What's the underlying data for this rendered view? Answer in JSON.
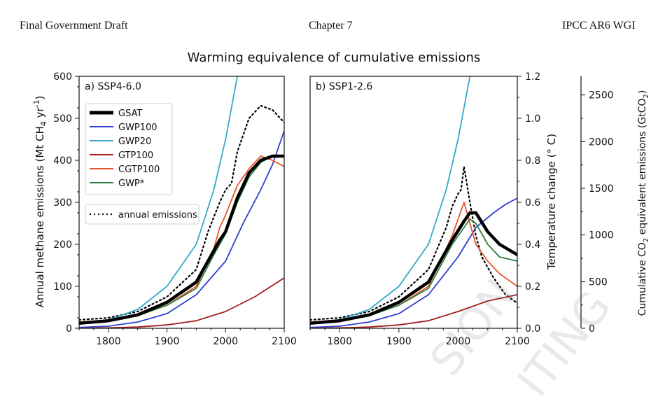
{
  "header": {
    "left": "Final Government Draft",
    "center": "Chapter 7",
    "right": "IPCC AR6 WGI"
  },
  "watermark": [
    "SION",
    "ITING"
  ],
  "colors": {
    "GSAT": "#000000",
    "GWP100": "#2f3fd0",
    "GWP20": "#35a8c9",
    "GTP100": "#a51c1c",
    "CGTP100": "#e8552a",
    "GWP*": "#2e7d3e",
    "annual": "#000000"
  },
  "chart_data": {
    "type": "line",
    "title": "Warming equivalence of cumulative emissions",
    "ylabel_left": "Annual methane emissions (Mt CH4 yr-1)",
    "ylabel_left_parts": [
      "Annual methane emissions (Mt CH",
      "4",
      " yr",
      "-1",
      ")"
    ],
    "ylabel_temp": "Temperature change (° C)",
    "ylabel_cum": "Cumulative CO2 equivalent emissions (GtCO2)",
    "ylabel_cum_parts": [
      "Cumulative CO",
      "2",
      " equivalent emissions (GtCO",
      "2",
      ")"
    ],
    "ylim_left": [
      0,
      600
    ],
    "ylim_temp": [
      0,
      1.2
    ],
    "ylim_cum": [
      0,
      2700
    ],
    "xlim": [
      1750,
      2100
    ],
    "xticks": [
      1800,
      1900,
      2000,
      2100
    ],
    "yticks_left": [
      0,
      100,
      200,
      300,
      400,
      500,
      600
    ],
    "yticks_temp": [
      "0.0",
      "0.2",
      "0.4",
      "0.6",
      "0.8",
      "1.0",
      "1.2"
    ],
    "yticks_cum": [
      0,
      500,
      1000,
      1500,
      2000,
      2500
    ],
    "legend": [
      "GSAT",
      "GWP100",
      "GWP20",
      "GTP100",
      "CGTP100",
      "GWP*"
    ],
    "legend_annual": "annual emissions",
    "legend_position": "upper-left",
    "panels": [
      {
        "label": "a) SSP4-6.0",
        "series": [
          {
            "name": "annual emissions",
            "style": "dotted",
            "x": [
              1750,
              1800,
              1850,
              1900,
              1950,
              1970,
              1980,
              1990,
              2000,
              2010,
              2020,
              2040,
              2060,
              2080,
              2100
            ],
            "y": [
              20,
              25,
              40,
              75,
              140,
              230,
              265,
              300,
              330,
              345,
              420,
              500,
              530,
              520,
              490
            ]
          },
          {
            "name": "GWP20",
            "x": [
              1750,
              1800,
              1850,
              1900,
              1950,
              1980,
              2000,
              2020
            ],
            "y": [
              10,
              20,
              45,
              100,
              200,
              330,
              450,
              600
            ]
          },
          {
            "name": "GWP100",
            "x": [
              1750,
              1800,
              1850,
              1900,
              1950,
              2000,
              2030,
              2060,
              2080,
              2100
            ],
            "y": [
              2,
              5,
              15,
              35,
              80,
              160,
              250,
              330,
              390,
              470
            ]
          },
          {
            "name": "GTP100",
            "x": [
              1750,
              1800,
              1850,
              1900,
              1950,
              2000,
              2050,
              2100
            ],
            "y": [
              0,
              1,
              3,
              8,
              18,
              40,
              75,
              120
            ]
          },
          {
            "name": "CGTP100",
            "x": [
              1750,
              1800,
              1850,
              1900,
              1950,
              1980,
              1990,
              2000,
              2020,
              2040,
              2060,
              2080,
              2100
            ],
            "y": [
              15,
              20,
              30,
              55,
              100,
              190,
              240,
              270,
              340,
              380,
              410,
              400,
              385
            ]
          },
          {
            "name": "GWP*",
            "x": [
              1750,
              1800,
              1850,
              1900,
              1950,
              1980,
              2000,
              2020,
              2040,
              2060,
              2080,
              2100
            ],
            "y": [
              12,
              18,
              30,
              55,
              95,
              175,
              225,
              300,
              360,
              395,
              410,
              412
            ]
          },
          {
            "name": "GSAT",
            "x": [
              1750,
              1800,
              1850,
              1900,
              1950,
              1970,
              1990,
              2000,
              2010,
              2020,
              2040,
              2060,
              2080,
              2100
            ],
            "y": [
              12,
              18,
              32,
              62,
              110,
              160,
              210,
              230,
              270,
              310,
              370,
              400,
              410,
              410
            ]
          }
        ]
      },
      {
        "label": "b) SSP1-2.6",
        "series": [
          {
            "name": "annual emissions",
            "style": "dotted",
            "x": [
              1750,
              1800,
              1850,
              1900,
              1950,
              1980,
              1990,
              2000,
              2005,
              2010,
              2020,
              2030,
              2040,
              2060,
              2080,
              2100
            ],
            "y": [
              20,
              25,
              40,
              75,
              140,
              240,
              290,
              320,
              330,
              385,
              300,
              220,
              170,
              120,
              80,
              60
            ]
          },
          {
            "name": "GWP20",
            "x": [
              1750,
              1800,
              1850,
              1900,
              1950,
              1980,
              2000,
              2020
            ],
            "y": [
              10,
              20,
              45,
              100,
              200,
              330,
              450,
              600
            ]
          },
          {
            "name": "GWP100",
            "x": [
              1750,
              1800,
              1850,
              1900,
              1950,
              2000,
              2030,
              2060,
              2080,
              2100
            ],
            "y": [
              2,
              5,
              15,
              35,
              80,
              170,
              240,
              275,
              295,
              310
            ]
          },
          {
            "name": "GTP100",
            "x": [
              1750,
              1800,
              1850,
              1900,
              1950,
              2000,
              2050,
              2100
            ],
            "y": [
              0,
              1,
              3,
              8,
              18,
              40,
              65,
              80
            ]
          },
          {
            "name": "CGTP100",
            "x": [
              1750,
              1800,
              1850,
              1900,
              1950,
              1990,
              2000,
              2010,
              2020,
              2030,
              2050,
              2070,
              2090,
              2100
            ],
            "y": [
              15,
              20,
              30,
              55,
              100,
              220,
              260,
              300,
              250,
              200,
              160,
              130,
              110,
              100
            ]
          },
          {
            "name": "GWP*",
            "x": [
              1750,
              1800,
              1850,
              1900,
              1950,
              1990,
              2010,
              2020,
              2030,
              2050,
              2070,
              2100
            ],
            "y": [
              12,
              18,
              30,
              55,
              95,
              200,
              240,
              260,
              250,
              200,
              170,
              160
            ]
          },
          {
            "name": "GSAT",
            "x": [
              1750,
              1800,
              1850,
              1900,
              1950,
              1990,
              2010,
              2020,
              2030,
              2050,
              2070,
              2100
            ],
            "y": [
              12,
              18,
              32,
              62,
              110,
              210,
              255,
              275,
              275,
              230,
              200,
              175
            ]
          }
        ]
      }
    ]
  }
}
